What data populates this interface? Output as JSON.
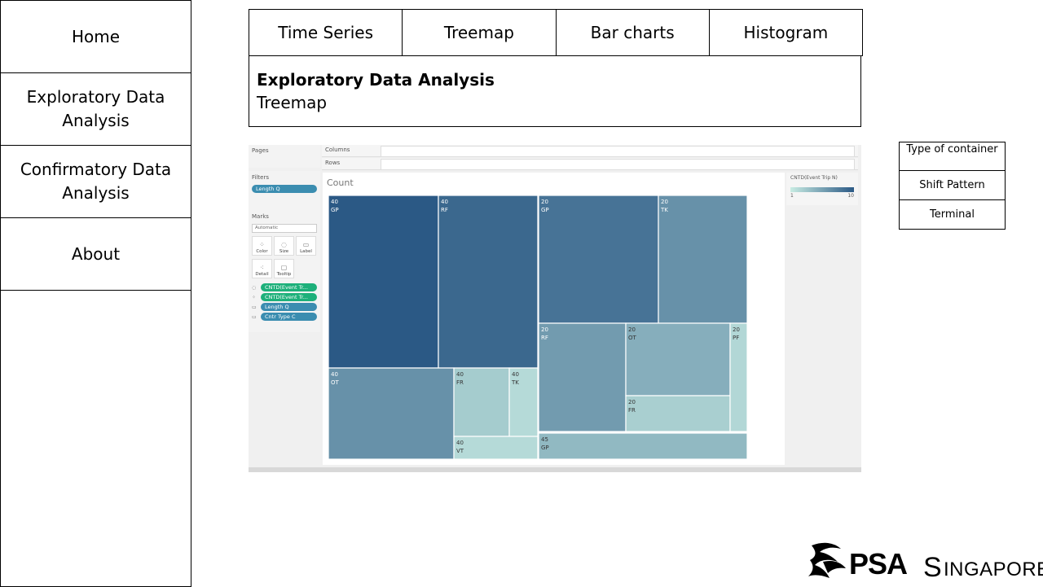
{
  "sidebar": {
    "items": [
      {
        "label": "Home"
      },
      {
        "label": "Exploratory Data Analysis"
      },
      {
        "label": "Confirmatory Data Analysis"
      },
      {
        "label": "About"
      }
    ]
  },
  "tabs": [
    {
      "label": "Time Series"
    },
    {
      "label": "Treemap"
    },
    {
      "label": "Bar charts"
    },
    {
      "label": "Histogram"
    }
  ],
  "header": {
    "title": "Exploratory Data Analysis",
    "subtitle": "Treemap"
  },
  "tableau": {
    "pages_label": "Pages",
    "columns_label": "Columns",
    "rows_label": "Rows",
    "filters_label": "Filters",
    "filter_pill": "Length Q",
    "marks_label": "Marks",
    "mark_type": "Automatic",
    "mark_buttons": [
      "Color",
      "Size",
      "Label",
      "Detail",
      "Tooltip"
    ],
    "mark_pills": [
      {
        "text": "CNTD(Event Tr...",
        "kind": "green"
      },
      {
        "text": "CNTD(Event Tr...",
        "kind": "green"
      },
      {
        "text": "Length Q",
        "kind": "blue"
      },
      {
        "text": "Cntr Type C",
        "kind": "blue"
      }
    ],
    "legend_title": "CNTD(Event Trip N)",
    "legend_min": "1",
    "legend_max": "10"
  },
  "chart_data": {
    "type": "treemap",
    "title": "Count",
    "color_range": [
      "#c8ece3",
      "#2b5985"
    ],
    "groups": [
      {
        "length": "40",
        "cells": [
          {
            "label": "GP",
            "value": 10
          },
          {
            "label": "RF",
            "value": 6.3
          },
          {
            "label": "OT",
            "value": 4.2
          },
          {
            "label": "FR",
            "value": 1.5
          },
          {
            "label": "TK",
            "value": 0.7
          },
          {
            "label": "VT",
            "value": 0.6
          }
        ]
      },
      {
        "length": "20",
        "cells": [
          {
            "label": "GP",
            "value": 7.5
          },
          {
            "label": "TK",
            "value": 5.2
          },
          {
            "label": "RF",
            "value": 4.4
          },
          {
            "label": "OT",
            "value": 3.4
          },
          {
            "label": "FR",
            "value": 1.2
          },
          {
            "label": "PF",
            "value": 0.8
          }
        ]
      },
      {
        "length": "45",
        "cells": [
          {
            "label": "GP",
            "value": 2.5
          }
        ]
      }
    ]
  },
  "right_panel": {
    "header": "Type of container",
    "items": [
      {
        "label": "Shift Pattern"
      },
      {
        "label": "Terminal"
      }
    ]
  },
  "logo": {
    "psa": "PSA",
    "singapore_initial": "S",
    "singapore_rest": "INGAPORE"
  }
}
